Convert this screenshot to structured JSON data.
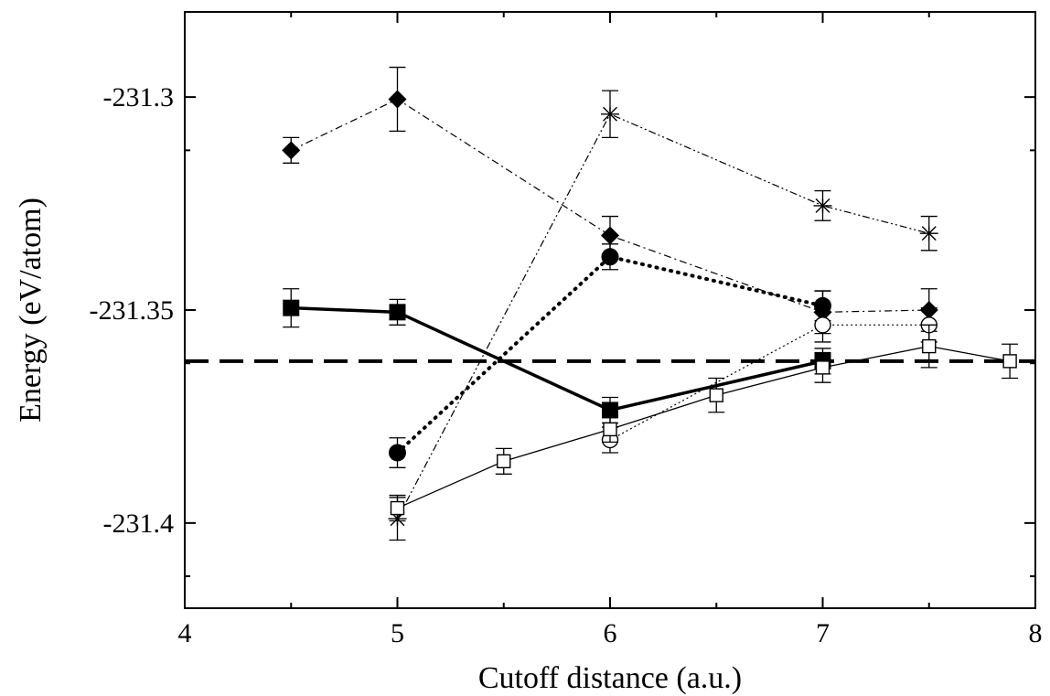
{
  "chart_data": {
    "type": "line",
    "title": "",
    "xlabel": "Cutoff distance (a.u.)",
    "ylabel": "Energy (eV/atom)",
    "xlim": [
      4,
      8
    ],
    "ylim": [
      -231.42,
      -231.28
    ],
    "x_ticks": [
      4,
      5,
      6,
      7,
      8
    ],
    "x_tick_labels": [
      "4",
      "5",
      "6",
      "7",
      "8"
    ],
    "y_ticks": [
      -231.4,
      -231.35,
      -231.3
    ],
    "y_tick_labels": [
      "-231.4",
      "-231.35",
      "-231.3"
    ],
    "grid": false,
    "legend": "none",
    "reference_line": {
      "y": -231.362,
      "style": "dashed"
    },
    "series": [
      {
        "marker": "filled-square",
        "line": "solid-thick",
        "points": [
          {
            "x": 4.5,
            "y": -231.3495,
            "err": 0.0045
          },
          {
            "x": 5.0,
            "y": -231.3505,
            "err": 0.003
          },
          {
            "x": 6.0,
            "y": -231.3735,
            "err": 0.003
          },
          {
            "x": 7.0,
            "y": -231.362,
            "err": 0.003
          }
        ]
      },
      {
        "marker": "filled-diamond",
        "line": "dash-dot",
        "points": [
          {
            "x": 4.5,
            "y": -231.3125,
            "err": 0.003
          },
          {
            "x": 5.0,
            "y": -231.3005,
            "err": 0.0075
          },
          {
            "x": 6.0,
            "y": -231.3325,
            "err": 0.0045
          },
          {
            "x": 7.0,
            "y": -231.3505,
            "err": 0.005
          },
          {
            "x": 7.5,
            "y": -231.35,
            "err": 0.005
          }
        ]
      },
      {
        "marker": "filled-circle",
        "line": "dotted-thick",
        "points": [
          {
            "x": 5.0,
            "y": -231.3835,
            "err": 0.0035
          },
          {
            "x": 6.0,
            "y": -231.3375,
            "err": 0.003
          },
          {
            "x": 7.0,
            "y": -231.349,
            "err": 0.0035
          }
        ]
      },
      {
        "marker": "open-circle",
        "line": "dotted-thin",
        "points": [
          {
            "x": 6.0,
            "y": -231.3805,
            "err": 0.003
          },
          {
            "x": 7.0,
            "y": -231.3535,
            "err": 0.004
          },
          {
            "x": 7.5,
            "y": -231.3535,
            "err": 0.004
          }
        ]
      },
      {
        "marker": "star",
        "line": "dash-dot-dot",
        "points": [
          {
            "x": 5.0,
            "y": -231.399,
            "err": 0.005
          },
          {
            "x": 6.0,
            "y": -231.304,
            "err": 0.0055
          },
          {
            "x": 7.0,
            "y": -231.3255,
            "err": 0.0035
          },
          {
            "x": 7.5,
            "y": -231.332,
            "err": 0.004
          }
        ]
      },
      {
        "marker": "open-square",
        "line": "solid-thin",
        "points": [
          {
            "x": 5.0,
            "y": -231.3965,
            "err": 0.003
          },
          {
            "x": 5.5,
            "y": -231.3855,
            "err": 0.003
          },
          {
            "x": 6.0,
            "y": -231.378,
            "err": 0.003
          },
          {
            "x": 6.5,
            "y": -231.37,
            "err": 0.004
          },
          {
            "x": 7.0,
            "y": -231.3635,
            "err": 0.0035
          },
          {
            "x": 7.5,
            "y": -231.3585,
            "err": 0.005
          },
          {
            "x": 7.88,
            "y": -231.362,
            "err": 0.004
          }
        ]
      }
    ]
  }
}
